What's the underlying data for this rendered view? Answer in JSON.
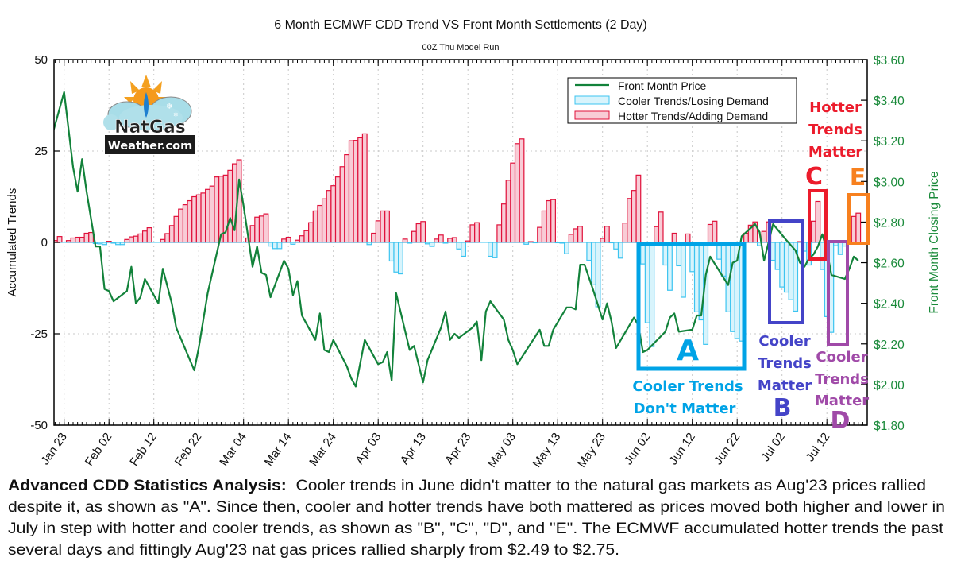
{
  "chart_data": {
    "type": "bar+line",
    "title": "6 Month ECMWF CDD Trend VS Front Month Settlements (2 Day)",
    "subtitle": "00Z Thu Model Run",
    "ylabel": "Accumulated Trends",
    "y2label": "Front Month Closing Price",
    "ylim": [
      -50,
      50
    ],
    "yticks": [
      "-50",
      "-25",
      "0",
      "25",
      "50"
    ],
    "y2lim": [
      1.8,
      3.6
    ],
    "y2ticks": [
      "$1.80",
      "$2.00",
      "$2.20",
      "$2.40",
      "$2.60",
      "$2.80",
      "$3.00",
      "$3.20",
      "$3.40",
      "$3.60"
    ],
    "xticks": [
      "Jan 23",
      "Feb 02",
      "Feb 12",
      "Feb 22",
      "Mar 04",
      "Mar 14",
      "Mar 24",
      "Apr 03",
      "Apr 13",
      "Apr 23",
      "May 03",
      "May 13",
      "May 23",
      "Jun 02",
      "Jun 12",
      "Jun 22",
      "Jul 02",
      "Jul 12"
    ],
    "grid": true,
    "legend_position": "top-right",
    "legend": [
      "Front Month Price",
      "Cooler Trends/Losing Demand",
      "Hotter Trends/Adding Demand"
    ],
    "colors": {
      "price": "#12823a",
      "cooler_fill": "#d8f4fc",
      "cooler_edge": "#3cc4f0",
      "hotter_fill": "#f8ccd6",
      "hotter_edge": "#e0103a",
      "price_axis": "#1a8a3a"
    },
    "trend_bars": [
      [
        "Jan 21",
        0.5
      ],
      [
        "Jan 22",
        1.6
      ],
      [
        "Jan 23",
        0
      ],
      [
        "Jan 24",
        0.5
      ],
      [
        "Jan 25",
        1.2
      ],
      [
        "Jan 26",
        1.4
      ],
      [
        "Jan 27",
        1.4
      ],
      [
        "Jan 28",
        2.5
      ],
      [
        "Jan 29",
        2.7
      ],
      [
        "Jan 30",
        -0.3
      ],
      [
        "Jan 31",
        -0.4
      ],
      [
        "Feb 01",
        -0.6
      ],
      [
        "Feb 02",
        0.3
      ],
      [
        "Feb 03",
        -0.2
      ],
      [
        "Feb 04",
        -0.6
      ],
      [
        "Feb 05",
        -0.6
      ],
      [
        "Feb 06",
        0.8
      ],
      [
        "Feb 07",
        1.5
      ],
      [
        "Feb 08",
        1.7
      ],
      [
        "Feb 09",
        2.3
      ],
      [
        "Feb 10",
        3.1
      ],
      [
        "Feb 11",
        4.0
      ],
      [
        "Feb 12",
        0
      ],
      [
        "Feb 13",
        0
      ],
      [
        "Feb 14",
        0.8
      ],
      [
        "Feb 15",
        2.4
      ],
      [
        "Feb 16",
        4.6
      ],
      [
        "Feb 17",
        7.1
      ],
      [
        "Feb 18",
        9.1
      ],
      [
        "Feb 19",
        10.3
      ],
      [
        "Feb 20",
        11.4
      ],
      [
        "Feb 21",
        12.5
      ],
      [
        "Feb 22",
        13.0
      ],
      [
        "Feb 23",
        13.5
      ],
      [
        "Feb 24",
        14.5
      ],
      [
        "Feb 25",
        15.4
      ],
      [
        "Feb 26",
        17.9
      ],
      [
        "Feb 27",
        18.1
      ],
      [
        "Feb 28",
        18.4
      ],
      [
        "Mar 01",
        19.7
      ],
      [
        "Mar 02",
        21.5
      ],
      [
        "Mar 03",
        22.6
      ],
      [
        "Mar 04",
        0
      ],
      [
        "Mar 05",
        1.2
      ],
      [
        "Mar 06",
        4.6
      ],
      [
        "Mar 07",
        6.9
      ],
      [
        "Mar 08",
        7.2
      ],
      [
        "Mar 09",
        7.8
      ],
      [
        "Mar 10",
        -1.0
      ],
      [
        "Mar 11",
        -1.7
      ],
      [
        "Mar 12",
        -1.7
      ],
      [
        "Mar 13",
        0.9
      ],
      [
        "Mar 14",
        1.4
      ],
      [
        "Mar 15",
        -0.5
      ],
      [
        "Mar 16",
        0.6
      ],
      [
        "Mar 17",
        1.8
      ],
      [
        "Mar 18",
        3.2
      ],
      [
        "Mar 19",
        5.4
      ],
      [
        "Mar 20",
        8.6
      ],
      [
        "Mar 21",
        10.1
      ],
      [
        "Mar 22",
        11.9
      ],
      [
        "Mar 23",
        14.2
      ],
      [
        "Mar 24",
        15.5
      ],
      [
        "Mar 25",
        17.9
      ],
      [
        "Mar 26",
        20.7
      ],
      [
        "Mar 27",
        24.0
      ],
      [
        "Mar 28",
        27.8
      ],
      [
        "Mar 29",
        27.9
      ],
      [
        "Mar 30",
        28.6
      ],
      [
        "Mar 31",
        29.7
      ],
      [
        "Apr 01",
        -0.6
      ],
      [
        "Apr 02",
        2.5
      ],
      [
        "Apr 03",
        5.9
      ],
      [
        "Apr 04",
        8.6
      ],
      [
        "Apr 05",
        8.6
      ],
      [
        "Apr 06",
        -5.1
      ],
      [
        "Apr 07",
        -8.1
      ],
      [
        "Apr 08",
        -8.6
      ],
      [
        "Apr 09",
        0.9
      ],
      [
        "Apr 10",
        -0.2
      ],
      [
        "Apr 11",
        3.0
      ],
      [
        "Apr 12",
        5.1
      ],
      [
        "Apr 13",
        5.7
      ],
      [
        "Apr 14",
        -0.4
      ],
      [
        "Apr 15",
        -1.1
      ],
      [
        "Apr 16",
        0.9
      ],
      [
        "Apr 17",
        2.0
      ],
      [
        "Apr 18",
        -0.2
      ],
      [
        "Apr 19",
        1.1
      ],
      [
        "Apr 20",
        1.3
      ],
      [
        "Apr 21",
        -1.8
      ],
      [
        "Apr 22",
        -3.8
      ],
      [
        "Apr 23",
        0.4
      ],
      [
        "Apr 24",
        4.8
      ],
      [
        "Apr 25",
        5.4
      ],
      [
        "Apr 26",
        0
      ],
      [
        "Apr 27",
        0
      ],
      [
        "Apr 28",
        -3.8
      ],
      [
        "Apr 29",
        -4.2
      ],
      [
        "Apr 30",
        4.8
      ],
      [
        "May 01",
        10.5
      ],
      [
        "May 02",
        17.0
      ],
      [
        "May 03",
        21.7
      ],
      [
        "May 04",
        27.0
      ],
      [
        "May 05",
        28.3
      ],
      [
        "May 06",
        -0.5
      ],
      [
        "May 07",
        0.2
      ],
      [
        "May 08",
        -0.1
      ],
      [
        "May 09",
        4.1
      ],
      [
        "May 10",
        8.6
      ],
      [
        "May 11",
        11.4
      ],
      [
        "May 12",
        11.7
      ],
      [
        "May 13",
        -0.1
      ],
      [
        "May 14",
        -0.2
      ],
      [
        "May 15",
        -3.1
      ],
      [
        "May 16",
        2.2
      ],
      [
        "May 17",
        3.7
      ],
      [
        "May 18",
        4.4
      ],
      [
        "May 19",
        0
      ],
      [
        "May 20",
        -4.9
      ],
      [
        "May 21",
        -11.6
      ],
      [
        "May 22",
        -17.6
      ],
      [
        "May 23",
        1.1
      ],
      [
        "May 24",
        4.4
      ],
      [
        "May 25",
        -0.1
      ],
      [
        "May 26",
        -1.8
      ],
      [
        "May 27",
        -4.3
      ],
      [
        "May 28",
        5.3
      ],
      [
        "May 29",
        12.0
      ],
      [
        "May 30",
        14.2
      ],
      [
        "May 31",
        18.4
      ],
      [
        "Jun 01",
        -5.9
      ],
      [
        "Jun 02",
        -22.0
      ],
      [
        "Jun 03",
        -28.5
      ],
      [
        "Jun 04",
        4.3
      ],
      [
        "Jun 05",
        8.3
      ],
      [
        "Jun 06",
        -6.2
      ],
      [
        "Jun 07",
        -13.1
      ],
      [
        "Jun 08",
        2.5
      ],
      [
        "Jun 09",
        -6.4
      ],
      [
        "Jun 10",
        -15.0
      ],
      [
        "Jun 11",
        2.3
      ],
      [
        "Jun 12",
        -8.0
      ],
      [
        "Jun 13",
        -19.0
      ],
      [
        "Jun 14",
        -21.2
      ],
      [
        "Jun 15",
        -27.9
      ],
      [
        "Jun 16",
        4.9
      ],
      [
        "Jun 17",
        5.8
      ],
      [
        "Jun 18",
        -4.6
      ],
      [
        "Jun 19",
        -9.2
      ],
      [
        "Jun 20",
        -19.0
      ],
      [
        "Jun 21",
        -24.4
      ],
      [
        "Jun 22",
        -26.3
      ],
      [
        "Jun 23",
        -27.0
      ],
      [
        "Jun 24",
        2.5
      ],
      [
        "Jun 25",
        4.7
      ],
      [
        "Jun 26",
        5.6
      ],
      [
        "Jun 27",
        -0.9
      ],
      [
        "Jun 28",
        3.0
      ],
      [
        "Jun 29",
        5.6
      ],
      [
        "Jun 30",
        -4.9
      ],
      [
        "Jul 01",
        -7.4
      ],
      [
        "Jul 02",
        -12.2
      ],
      [
        "Jul 03",
        -13.6
      ],
      [
        "Jul 04",
        -15.7
      ],
      [
        "Jul 05",
        -18.8
      ],
      [
        "Jul 06",
        0.2
      ],
      [
        "Jul 07",
        -2.4
      ],
      [
        "Jul 08",
        -6.2
      ],
      [
        "Jul 09",
        5.8
      ],
      [
        "Jul 10",
        11.2
      ],
      [
        "Jul 11",
        -7.4
      ],
      [
        "Jul 12",
        -20.3
      ],
      [
        "Jul 13",
        -24.6
      ],
      [
        "Jul 14",
        -0.9
      ],
      [
        "Jul 15",
        -3.3
      ],
      [
        "Jul 16",
        -1.0
      ],
      [
        "Jul 17",
        4.9
      ],
      [
        "Jul 18",
        7.1
      ],
      [
        "Jul 19",
        8.0
      ]
    ],
    "price": [
      [
        "Jan 20",
        3.2
      ],
      [
        "Jan 23",
        3.44
      ],
      [
        "Jan 25",
        3.07
      ],
      [
        "Jan 26",
        2.95
      ],
      [
        "Jan 27",
        3.11
      ],
      [
        "Jan 28",
        2.95
      ],
      [
        "Jan 30",
        2.68
      ],
      [
        "Jan 31",
        2.68
      ],
      [
        "Feb 01",
        2.47
      ],
      [
        "Feb 02",
        2.46
      ],
      [
        "Feb 03",
        2.41
      ],
      [
        "Feb 06",
        2.46
      ],
      [
        "Feb 07",
        2.58
      ],
      [
        "Feb 08",
        2.4
      ],
      [
        "Feb 09",
        2.43
      ],
      [
        "Feb 10",
        2.52
      ],
      [
        "Feb 13",
        2.4
      ],
      [
        "Feb 14",
        2.57
      ],
      [
        "Feb 16",
        2.4
      ],
      [
        "Feb 17",
        2.28
      ],
      [
        "Feb 21",
        2.07
      ],
      [
        "Feb 22",
        2.18
      ],
      [
        "Feb 24",
        2.45
      ],
      [
        "Feb 27",
        2.74
      ],
      [
        "Feb 28",
        2.75
      ],
      [
        "Mar 01",
        2.82
      ],
      [
        "Mar 02",
        2.76
      ],
      [
        "Mar 03",
        3.01
      ],
      [
        "Mar 04",
        2.88
      ],
      [
        "Mar 06",
        2.58
      ],
      [
        "Mar 07",
        2.68
      ],
      [
        "Mar 08",
        2.55
      ],
      [
        "Mar 09",
        2.54
      ],
      [
        "Mar 10",
        2.43
      ],
      [
        "Mar 13",
        2.61
      ],
      [
        "Mar 14",
        2.57
      ],
      [
        "Mar 15",
        2.44
      ],
      [
        "Mar 16",
        2.51
      ],
      [
        "Mar 17",
        2.34
      ],
      [
        "Mar 20",
        2.22
      ],
      [
        "Mar 21",
        2.35
      ],
      [
        "Mar 22",
        2.17
      ],
      [
        "Mar 23",
        2.16
      ],
      [
        "Mar 24",
        2.22
      ],
      [
        "Mar 27",
        2.09
      ],
      [
        "Mar 28",
        2.03
      ],
      [
        "Mar 29",
        1.99
      ],
      [
        "Mar 31",
        2.22
      ],
      [
        "Apr 03",
        2.1
      ],
      [
        "Apr 04",
        2.11
      ],
      [
        "Apr 05",
        2.16
      ],
      [
        "Apr 06",
        2.02
      ],
      [
        "Apr 07",
        2.45
      ],
      [
        "Apr 10",
        2.17
      ],
      [
        "Apr 11",
        2.19
      ],
      [
        "Apr 13",
        2.01
      ],
      [
        "Apr 14",
        2.12
      ],
      [
        "Apr 17",
        2.28
      ],
      [
        "Apr 18",
        2.36
      ],
      [
        "Apr 19",
        2.22
      ],
      [
        "Apr 20",
        2.25
      ],
      [
        "Apr 21",
        2.23
      ],
      [
        "Apr 24",
        2.28
      ],
      [
        "Apr 25",
        2.31
      ],
      [
        "Apr 26",
        2.12
      ],
      [
        "Apr 27",
        2.36
      ],
      [
        "Apr 28",
        2.41
      ],
      [
        "May 01",
        2.32
      ],
      [
        "May 02",
        2.22
      ],
      [
        "May 03",
        2.17
      ],
      [
        "May 04",
        2.1
      ],
      [
        "May 09",
        2.27
      ],
      [
        "May 10",
        2.19
      ],
      [
        "May 11",
        2.19
      ],
      [
        "May 12",
        2.27
      ],
      [
        "May 15",
        2.38
      ],
      [
        "May 16",
        2.38
      ],
      [
        "May 17",
        2.37
      ],
      [
        "May 18",
        2.59
      ],
      [
        "May 19",
        2.59
      ],
      [
        "May 21",
        2.46
      ],
      [
        "May 23",
        2.32
      ],
      [
        "May 24",
        2.4
      ],
      [
        "May 25",
        2.31
      ],
      [
        "May 26",
        2.18
      ],
      [
        "May 30",
        2.33
      ],
      [
        "May 31",
        2.29
      ],
      [
        "Jun 01",
        2.16
      ],
      [
        "Jun 02",
        2.17
      ],
      [
        "Jun 06",
        2.26
      ],
      [
        "Jun 07",
        2.33
      ],
      [
        "Jun 08",
        2.35
      ],
      [
        "Jun 09",
        2.26
      ],
      [
        "Jun 12",
        2.27
      ],
      [
        "Jun 13",
        2.34
      ],
      [
        "Jun 14",
        2.34
      ],
      [
        "Jun 15",
        2.54
      ],
      [
        "Jun 16",
        2.63
      ],
      [
        "Jun 20",
        2.49
      ],
      [
        "Jun 21",
        2.6
      ],
      [
        "Jun 22",
        2.61
      ],
      [
        "Jun 23",
        2.73
      ],
      [
        "Jun 26",
        2.79
      ],
      [
        "Jun 27",
        2.75
      ],
      [
        "Jun 28",
        2.61
      ],
      [
        "Jun 30",
        2.79
      ],
      [
        "Jul 03",
        2.71
      ],
      [
        "Jul 05",
        2.66
      ],
      [
        "Jul 06",
        2.6
      ],
      [
        "Jul 07",
        2.58
      ],
      [
        "Jul 08",
        2.62
      ],
      [
        "Jul 09",
        2.64
      ],
      [
        "Jul 10",
        2.68
      ],
      [
        "Jul 11",
        2.74
      ],
      [
        "Jul 12",
        2.66
      ],
      [
        "Jul 13",
        2.54
      ],
      [
        "Jul 16",
        2.52
      ],
      [
        "Jul 17",
        2.57
      ],
      [
        "Jul 18",
        2.63
      ],
      [
        "Jul 19",
        2.61
      ]
    ]
  },
  "logo": {
    "line1": "NatGas",
    "line2": "Weather.com"
  },
  "annotations": {
    "a": {
      "letter": "A",
      "text1": "Cooler Trends",
      "text2": "Don't Matter",
      "color": "#00a3e6"
    },
    "b": {
      "letter": "B",
      "text1": "Cooler",
      "text2": "Trends",
      "text3": "Matter",
      "color": "#4444c8"
    },
    "c": {
      "letter": "C",
      "text1": "Hotter",
      "text2": "Trends",
      "text3": "Matter",
      "color": "#ec1c2c"
    },
    "d": {
      "letter": "D",
      "text1": "Cooler",
      "text2": "Trends",
      "text3": "Matter",
      "color": "#a04aa8"
    },
    "e": {
      "letter": "E",
      "color": "#f7801e"
    }
  },
  "analysis": {
    "lead": "Advanced CDD Statistics Analysis:",
    "line1": "  Cooler trends in June didn't matter to the natural gas markets as Aug'23 prices rallied",
    "line2": "despite it, as shown as \"A\".  Since then, cooler and hotter trends have both mattered as prices moved both higher and lower in",
    "line3": "July in step with hotter and cooler trends, as shown as \"B\", \"C\", \"D\", and \"E\".  The ECMWF accumulated hotter trends the past",
    "line4": "several days and fittingly Aug'23 nat gas prices rallied sharply from $2.49 to $2.75."
  }
}
